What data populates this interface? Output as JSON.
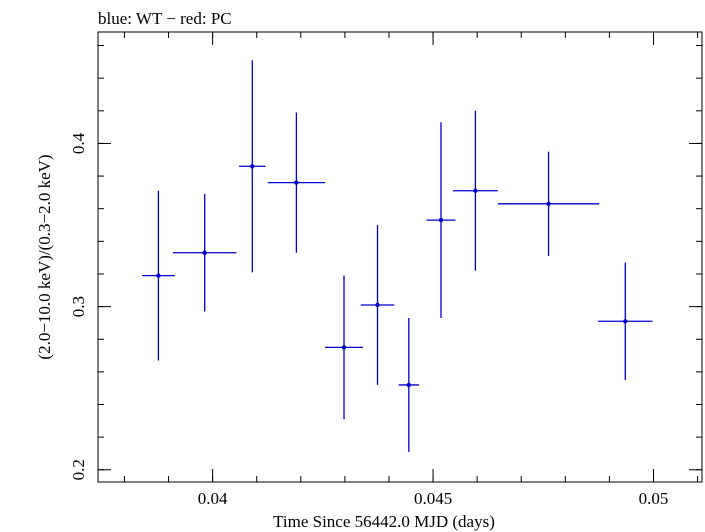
{
  "chart_data": {
    "type": "scatter",
    "title": "blue: WT − red: PC",
    "xlabel": "Time Since 56442.0 MJD (days)",
    "ylabel": "(2.0−10.0 keV)/(0.3−2.0 keV)",
    "xlim": [
      0.0374,
      0.0511
    ],
    "ylim": [
      0.1925,
      0.4683
    ],
    "x_ticks": [
      {
        "value": 0.04,
        "label": "0.04"
      },
      {
        "value": 0.045,
        "label": "0.045"
      },
      {
        "value": 0.05,
        "label": "0.05"
      }
    ],
    "y_ticks": [
      {
        "value": 0.2,
        "label": "0.2"
      },
      {
        "value": 0.3,
        "label": "0.3"
      },
      {
        "value": 0.4,
        "label": "0.4"
      }
    ],
    "x_minor_step": 0.001,
    "y_minor_step": 0.02,
    "grid": false,
    "series": [
      {
        "color": "#0000cc",
        "points": [
          {
            "x": 0.03877,
            "xerr": 0.00037,
            "y": 0.319,
            "yerr_lo": 0.052,
            "yerr_hi": 0.052
          },
          {
            "x": 0.03982,
            "xerr": 0.00072,
            "y": 0.333,
            "yerr_lo": 0.036,
            "yerr_hi": 0.036
          },
          {
            "x": 0.0409,
            "xerr": 0.0003,
            "y": 0.386,
            "yerr_lo": 0.065,
            "yerr_hi": 0.065
          },
          {
            "x": 0.0419,
            "xerr": 0.00065,
            "y": 0.376,
            "yerr_lo": 0.043,
            "yerr_hi": 0.043
          },
          {
            "x": 0.04298,
            "xerr": 0.00043,
            "y": 0.275,
            "yerr_lo": 0.044,
            "yerr_hi": 0.044
          },
          {
            "x": 0.04374,
            "xerr": 0.00038,
            "y": 0.301,
            "yerr_lo": 0.049,
            "yerr_hi": 0.049
          },
          {
            "x": 0.04445,
            "xerr": 0.00023,
            "y": 0.252,
            "yerr_lo": 0.041,
            "yerr_hi": 0.041
          },
          {
            "x": 0.04518,
            "xerr": 0.00033,
            "y": 0.353,
            "yerr_lo": 0.06,
            "yerr_hi": 0.06
          },
          {
            "x": 0.04596,
            "xerr": 0.00051,
            "y": 0.371,
            "yerr_lo": 0.049,
            "yerr_hi": 0.049
          },
          {
            "x": 0.04762,
            "xerr": 0.00115,
            "y": 0.363,
            "yerr_lo": 0.032,
            "yerr_hi": 0.032
          },
          {
            "x": 0.04936,
            "xerr": 0.00062,
            "y": 0.291,
            "yerr_lo": 0.036,
            "yerr_hi": 0.036
          }
        ]
      }
    ]
  }
}
